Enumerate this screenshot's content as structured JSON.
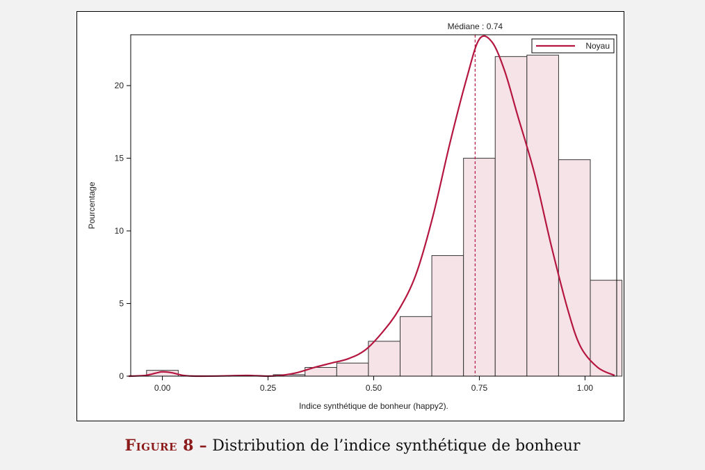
{
  "chart_data": {
    "type": "bar",
    "xlabel": "Indice synthétique de bonheur (happy2).",
    "ylabel": "Pourcentage",
    "xlim": [
      -0.075,
      1.075
    ],
    "ylim": [
      0,
      23.5
    ],
    "x_ticks": [
      0.0,
      0.25,
      0.5,
      0.75,
      1.0
    ],
    "x_tick_labels": [
      "0.00",
      "0.25",
      "0.50",
      "0.75",
      "1.00"
    ],
    "y_ticks": [
      0,
      5,
      10,
      15,
      20
    ],
    "y_tick_labels": [
      "0",
      "5",
      "10",
      "15",
      "20"
    ],
    "bin_width": 0.075,
    "bins": [
      {
        "center": 0.0,
        "value": 0.4
      },
      {
        "center": 0.075,
        "value": 0.0
      },
      {
        "center": 0.15,
        "value": 0.0
      },
      {
        "center": 0.225,
        "value": 0.0
      },
      {
        "center": 0.3,
        "value": 0.1
      },
      {
        "center": 0.375,
        "value": 0.6
      },
      {
        "center": 0.45,
        "value": 0.9
      },
      {
        "center": 0.525,
        "value": 2.4
      },
      {
        "center": 0.6,
        "value": 4.1
      },
      {
        "center": 0.675,
        "value": 8.3
      },
      {
        "center": 0.75,
        "value": 15.0
      },
      {
        "center": 0.825,
        "value": 22.0
      },
      {
        "center": 0.9,
        "value": 22.1
      },
      {
        "center": 0.975,
        "value": 14.9
      },
      {
        "center": 1.05,
        "value": 6.6
      }
    ],
    "kernel": {
      "name": "Noyau",
      "color": "#b5163f",
      "points": [
        [
          -0.08,
          0.0
        ],
        [
          -0.04,
          0.05
        ],
        [
          -0.01,
          0.25
        ],
        [
          0.0,
          0.3
        ],
        [
          0.02,
          0.25
        ],
        [
          0.05,
          0.05
        ],
        [
          0.08,
          0.0
        ],
        [
          0.15,
          0.02
        ],
        [
          0.2,
          0.05
        ],
        [
          0.25,
          0.0
        ],
        [
          0.28,
          0.05
        ],
        [
          0.32,
          0.25
        ],
        [
          0.36,
          0.6
        ],
        [
          0.4,
          0.9
        ],
        [
          0.44,
          1.2
        ],
        [
          0.48,
          1.8
        ],
        [
          0.52,
          3.0
        ],
        [
          0.56,
          4.6
        ],
        [
          0.6,
          7.0
        ],
        [
          0.64,
          11.0
        ],
        [
          0.68,
          16.0
        ],
        [
          0.72,
          20.5
        ],
        [
          0.75,
          23.2
        ],
        [
          0.78,
          23.0
        ],
        [
          0.81,
          21.0
        ],
        [
          0.84,
          18.0
        ],
        [
          0.88,
          14.0
        ],
        [
          0.92,
          9.0
        ],
        [
          0.96,
          4.5
        ],
        [
          0.99,
          2.0
        ],
        [
          1.03,
          0.6
        ],
        [
          1.07,
          0.05
        ]
      ]
    },
    "median": {
      "value": 0.74,
      "label": "Médiane : 0.74",
      "color": "#b5163f"
    },
    "legend": {
      "position": "top-right",
      "entries": [
        "Noyau"
      ]
    },
    "bar_fill": "#f5e3e8",
    "bar_stroke": "#333333"
  },
  "caption": {
    "label": "Figure 8",
    "separator": " – ",
    "text": "Distribution de l’indice synthétique de bonheur"
  }
}
